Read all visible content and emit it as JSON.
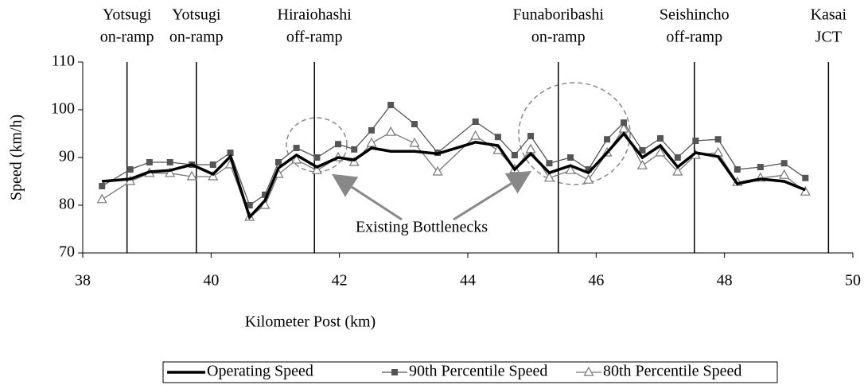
{
  "chart_data": {
    "type": "line",
    "x_label": "Kilometer Post (km)",
    "y_label": "Speed (km/h)",
    "xlim": [
      38,
      50
    ],
    "xticks": [
      38,
      40,
      42,
      44,
      46,
      48,
      50
    ],
    "ylim": [
      70,
      110
    ],
    "yticks": [
      70,
      80,
      90,
      100,
      110
    ],
    "x": [
      38.3,
      38.74,
      39.04,
      39.36,
      39.7,
      40.03,
      40.3,
      40.6,
      40.84,
      41.05,
      41.33,
      41.65,
      41.98,
      42.23,
      42.5,
      42.8,
      43.17,
      43.53,
      44.12,
      44.47,
      44.73,
      44.98,
      45.27,
      45.6,
      45.88,
      46.17,
      46.43,
      46.72,
      47.0,
      47.27,
      47.55,
      47.9,
      48.2,
      48.56,
      48.93,
      49.26
    ],
    "series": [
      {
        "name": "Operating Speed",
        "color": "#000000",
        "marker": "none",
        "values": [
          85,
          85.5,
          87,
          87.3,
          88.5,
          86.5,
          90.2,
          77.5,
          81,
          87.8,
          90.5,
          88,
          90,
          89.5,
          92,
          91.3,
          91.3,
          90.8,
          93.2,
          92.5,
          87.5,
          90.8,
          86.8,
          88.3,
          86.8,
          91,
          95,
          90,
          92.5,
          88,
          91,
          90.2,
          84.5,
          85.5,
          85,
          83.2
        ]
      },
      {
        "name": "90th Percentile Speed",
        "color": "#555555",
        "marker": "square",
        "values": [
          84,
          87.5,
          89,
          89,
          88.5,
          88.5,
          91,
          80,
          82.2,
          89,
          92,
          90,
          92.8,
          91.7,
          95.7,
          101,
          97,
          91,
          97.5,
          94.3,
          90.5,
          94.5,
          88.8,
          90,
          87.5,
          93.8,
          97.3,
          91.5,
          94,
          90,
          93.5,
          93.8,
          87.5,
          88,
          88.8,
          85.7
        ]
      },
      {
        "name": "80th Percentile Speed",
        "color": "#777777",
        "marker": "triangle",
        "values": [
          81.2,
          85,
          86.7,
          86.7,
          86,
          86,
          88.5,
          77.5,
          80,
          86.5,
          89.5,
          87.3,
          90,
          89,
          93,
          95.3,
          93,
          87,
          94.5,
          91.5,
          87.5,
          91.7,
          85.7,
          87.3,
          85.3,
          91,
          96,
          88.3,
          91,
          87,
          90.5,
          91,
          84.8,
          85.7,
          86.3,
          82.8
        ]
      }
    ],
    "vlines": [
      {
        "x": 38.69,
        "lines": [
          "Yotsugi",
          "on-ramp"
        ]
      },
      {
        "x": 39.77,
        "lines": [
          "Yotsugi",
          "on-ramp"
        ]
      },
      {
        "x": 41.61,
        "lines": [
          "Hiraiohashi",
          "off-ramp"
        ]
      },
      {
        "x": 45.41,
        "lines": [
          "Funaboribashi",
          "on-ramp"
        ]
      },
      {
        "x": 47.53,
        "lines": [
          "Seishincho",
          "off-ramp"
        ]
      },
      {
        "x": 49.62,
        "lines": [
          "Kasai",
          "JCT"
        ]
      }
    ],
    "annotation": "Existing Bottlenecks",
    "legend": "bottom"
  }
}
